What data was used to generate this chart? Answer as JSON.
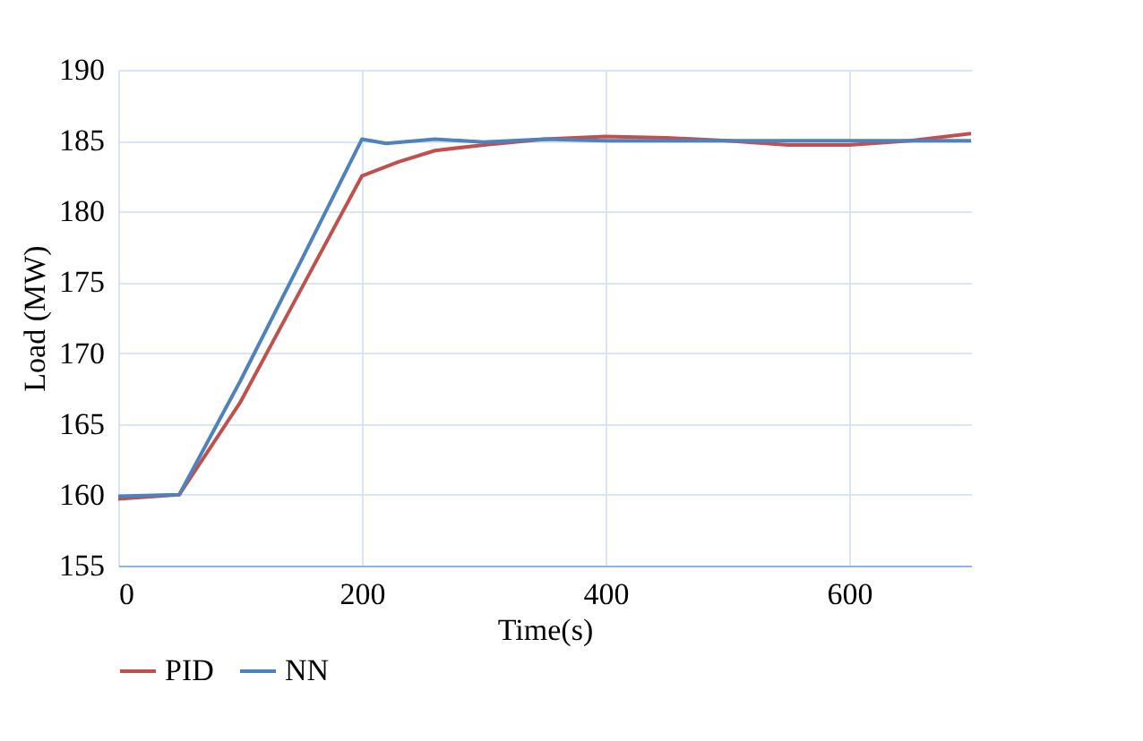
{
  "chart_data": {
    "type": "line",
    "xlabel": "Time(s)",
    "ylabel": "Load (MW)",
    "xlim": [
      0,
      700
    ],
    "xticks": [
      0,
      200,
      400,
      600
    ],
    "ylim": [
      155,
      190
    ],
    "yticks": [
      155,
      160,
      165,
      170,
      175,
      180,
      185,
      190
    ],
    "grid": true,
    "legend": "bottom",
    "line_style": "solid",
    "series": [
      {
        "name": "PID",
        "color": "#c0504d",
        "x": [
          0,
          50,
          100,
          150,
          200,
          230,
          260,
          300,
          350,
          400,
          450,
          500,
          550,
          600,
          650,
          700
        ],
        "values": [
          159.7,
          160,
          166.5,
          174.5,
          182.5,
          183.5,
          184.3,
          184.7,
          185.1,
          185.3,
          185.2,
          185,
          184.7,
          184.7,
          185,
          185.5
        ]
      },
      {
        "name": "NN",
        "color": "#4f81bd",
        "x": [
          0,
          50,
          100,
          150,
          200,
          220,
          260,
          300,
          350,
          400,
          500,
          600,
          700
        ],
        "values": [
          159.9,
          160,
          168,
          176.5,
          185.1,
          184.8,
          185.1,
          184.9,
          185.1,
          185,
          185,
          185,
          185
        ]
      }
    ]
  }
}
